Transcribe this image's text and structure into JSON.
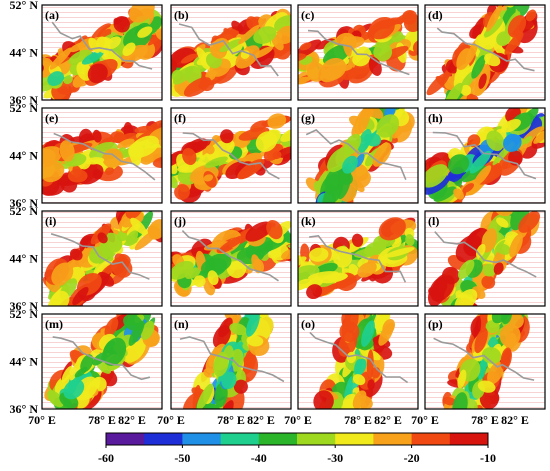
{
  "chart_data": {
    "type": "heatmap",
    "title": "",
    "layout": "4x4 panel grid",
    "panels": [
      "(a)",
      "(b)",
      "(c)",
      "(d)",
      "(e)",
      "(f)",
      "(g)",
      "(h)",
      "(i)",
      "(j)",
      "(k)",
      "(l)",
      "(m)",
      "(n)",
      "(o)",
      "(p)"
    ],
    "y_ticks": [
      "52° N",
      "44° N",
      "36° N"
    ],
    "y_tick_values": [
      52,
      44,
      36
    ],
    "x_ticks": [
      "70° E",
      "78° E",
      "82° E"
    ],
    "x_tick_values": [
      70,
      78,
      82
    ],
    "lon_range": [
      70,
      86
    ],
    "lat_range": [
      36,
      52
    ],
    "colorbar": {
      "orientation": "horizontal",
      "placement": "bottom",
      "ticks": [
        "-60",
        "-50",
        "-40",
        "-30",
        "-20",
        "-10"
      ],
      "tick_values": [
        -60,
        -50,
        -40,
        -30,
        -20,
        -10
      ],
      "range": [
        -60,
        -10
      ],
      "colors": [
        "#5a1a9e",
        "#1f2fd8",
        "#1f90e6",
        "#1fcf8e",
        "#2bb52b",
        "#9ed81f",
        "#f0ea1c",
        "#f7a21a",
        "#f04a12",
        "#d8140f"
      ]
    },
    "panel_fields": [
      {
        "panel": "(a)",
        "coverage": 0.7,
        "band_angle": 35,
        "core_value": -45
      },
      {
        "panel": "(b)",
        "coverage": 0.75,
        "band_angle": 30,
        "core_value": -38
      },
      {
        "panel": "(c)",
        "coverage": 0.45,
        "band_angle": 20,
        "core_value": -42
      },
      {
        "panel": "(d)",
        "coverage": 0.5,
        "band_angle": 60,
        "core_value": -40
      },
      {
        "panel": "(e)",
        "coverage": 0.55,
        "band_angle": 15,
        "core_value": -35
      },
      {
        "panel": "(f)",
        "coverage": 0.5,
        "band_angle": 25,
        "core_value": -40
      },
      {
        "panel": "(g)",
        "coverage": 0.65,
        "band_angle": 60,
        "core_value": -55
      },
      {
        "panel": "(h)",
        "coverage": 0.6,
        "band_angle": 40,
        "core_value": -58
      },
      {
        "panel": "(i)",
        "coverage": 0.55,
        "band_angle": 45,
        "core_value": -40
      },
      {
        "panel": "(j)",
        "coverage": 0.55,
        "band_angle": 25,
        "core_value": -45
      },
      {
        "panel": "(k)",
        "coverage": 0.45,
        "band_angle": 20,
        "core_value": -45
      },
      {
        "panel": "(l)",
        "coverage": 0.5,
        "band_angle": 60,
        "core_value": -45
      },
      {
        "panel": "(m)",
        "coverage": 0.7,
        "band_angle": 50,
        "core_value": -50
      },
      {
        "panel": "(n)",
        "coverage": 0.6,
        "band_angle": 70,
        "core_value": -52
      },
      {
        "panel": "(o)",
        "coverage": 0.5,
        "band_angle": 75,
        "core_value": -48
      },
      {
        "panel": "(p)",
        "coverage": 0.5,
        "band_angle": 70,
        "core_value": -48
      }
    ]
  }
}
